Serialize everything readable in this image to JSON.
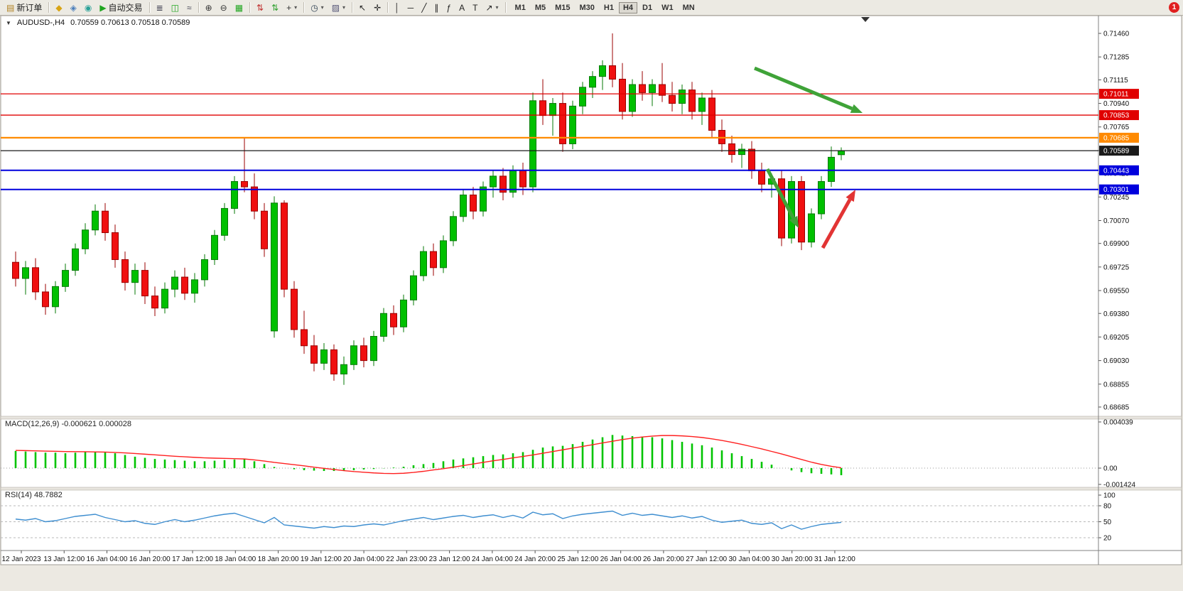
{
  "window": {
    "badge_count": "1"
  },
  "icons": {
    "chart_marker": "▼",
    "dropdown": "▾"
  },
  "toolbar": {
    "items": [
      {
        "t": "b",
        "name": "new-order-button",
        "icon": "new-order-icon",
        "glyph": "▤",
        "color": "#b08020",
        "label": "新订单"
      },
      {
        "t": "s"
      },
      {
        "t": "b",
        "name": "market-watch-button",
        "icon": "market-watch-icon",
        "glyph": "◆",
        "color": "#d8a415"
      },
      {
        "t": "b",
        "name": "navigator-button",
        "icon": "navigator-icon",
        "glyph": "◈",
        "color": "#4a7ebb"
      },
      {
        "t": "b",
        "name": "metaeditor-button",
        "icon": "metaeditor-icon",
        "glyph": "◉",
        "color": "#2aa198"
      },
      {
        "t": "b",
        "name": "autotrading-button",
        "icon": "autotrading-play-icon",
        "glyph": "▶",
        "color": "#1fa51f",
        "label": "自动交易"
      },
      {
        "t": "s"
      },
      {
        "t": "b",
        "name": "bar-chart-button",
        "icon": "bar-chart-icon",
        "glyph": "≣",
        "color": "#445"
      },
      {
        "t": "b",
        "name": "candlestick-chart-button",
        "icon": "candlestick-icon",
        "glyph": "◫",
        "color": "#1fa51f"
      },
      {
        "t": "b",
        "name": "line-chart-button",
        "icon": "line-chart-icon",
        "glyph": "≈",
        "color": "#445"
      },
      {
        "t": "s"
      },
      {
        "t": "b",
        "name": "zoom-in-button",
        "icon": "zoom-in-icon",
        "glyph": "⊕",
        "color": "#333"
      },
      {
        "t": "b",
        "name": "zoom-out-button",
        "icon": "zoom-out-icon",
        "glyph": "⊖",
        "color": "#333"
      },
      {
        "t": "b",
        "name": "tile-windows-button",
        "icon": "tile-windows-icon",
        "glyph": "▦",
        "color": "#1fa51f"
      },
      {
        "t": "s"
      },
      {
        "t": "b",
        "name": "indicators-button",
        "icon": "indicators-icon",
        "glyph": "⇅",
        "color": "#c03030"
      },
      {
        "t": "b",
        "name": "add-indicator-button",
        "icon": "add-indicator-icon",
        "glyph": "⇅",
        "color": "#30a030"
      },
      {
        "t": "b",
        "name": "indicator-list-button",
        "icon": "plus-icon",
        "glyph": "+",
        "color": "#333",
        "dd": true
      },
      {
        "t": "s"
      },
      {
        "t": "b",
        "name": "periods-button",
        "icon": "clock-icon",
        "glyph": "◷",
        "color": "#345",
        "dd": true
      },
      {
        "t": "b",
        "name": "templates-button",
        "icon": "template-icon",
        "glyph": "▨",
        "color": "#557",
        "dd": true
      },
      {
        "t": "s"
      },
      {
        "t": "b",
        "name": "cursor-button",
        "icon": "cursor-icon",
        "glyph": "↖",
        "color": "#222"
      },
      {
        "t": "b",
        "name": "crosshair-button",
        "icon": "crosshair-icon",
        "glyph": "✛",
        "color": "#222"
      },
      {
        "t": "s"
      },
      {
        "t": "b",
        "name": "vertical-line-button",
        "icon": "vertical-line-icon",
        "glyph": "│",
        "color": "#222"
      },
      {
        "t": "b",
        "name": "horizontal-line-button",
        "icon": "horizontal-line-icon",
        "glyph": "─",
        "color": "#222"
      },
      {
        "t": "b",
        "name": "trendline-button",
        "icon": "trendline-icon",
        "glyph": "╱",
        "color": "#222"
      },
      {
        "t": "b",
        "name": "channel-button",
        "icon": "channel-icon",
        "glyph": "∥",
        "color": "#222"
      },
      {
        "t": "b",
        "name": "fibonacci-button",
        "icon": "fibonacci-icon",
        "glyph": "ƒ",
        "color": "#222"
      },
      {
        "t": "b",
        "name": "text-button",
        "icon": "text-icon",
        "glyph": "A",
        "color": "#222"
      },
      {
        "t": "b",
        "name": "label-button",
        "icon": "label-icon",
        "glyph": "T",
        "color": "#222"
      },
      {
        "t": "b",
        "name": "shapes-button",
        "icon": "arrow-shape-icon",
        "glyph": "↗",
        "color": "#222",
        "dd": true
      },
      {
        "t": "s"
      }
    ],
    "timeframes": [
      {
        "label": "M1"
      },
      {
        "label": "M5"
      },
      {
        "label": "M15"
      },
      {
        "label": "M30"
      },
      {
        "label": "H1"
      },
      {
        "label": "H4",
        "active": true
      },
      {
        "label": "D1"
      },
      {
        "label": "W1"
      },
      {
        "label": "MN"
      }
    ]
  },
  "chart": {
    "title_symbol": "AUDUSD-,H4",
    "title_ohlc": "0.70559 0.70613 0.70518 0.70589",
    "macd_text": "MACD(12,26,9) -0.000621 0.000028",
    "rsi_text": "RSI(14) 48.7882"
  },
  "chart_data": [
    {
      "type": "candlestick",
      "title": "AUDUSD-,H4",
      "ohlc_display": "0.70559 0.70613 0.70518 0.70589",
      "up_color": "#00c000",
      "down_color": "#f01010",
      "price_ticks": [
        "0.71460",
        "0.71285",
        "0.71115",
        "0.70940",
        "0.70765",
        "0.70590",
        "0.70420",
        "0.70245",
        "0.70070",
        "0.69900",
        "0.69725",
        "0.69550",
        "0.69380",
        "0.69205",
        "0.69030",
        "0.68855",
        "0.68685"
      ],
      "ohlc": [
        [
          0.6976,
          0.6984,
          0.6958,
          0.6964
        ],
        [
          0.6964,
          0.6977,
          0.6952,
          0.6972
        ],
        [
          0.6972,
          0.6979,
          0.6948,
          0.6954
        ],
        [
          0.6954,
          0.696,
          0.6937,
          0.6943
        ],
        [
          0.6943,
          0.6962,
          0.6938,
          0.6958
        ],
        [
          0.6958,
          0.6975,
          0.6954,
          0.697
        ],
        [
          0.697,
          0.699,
          0.6966,
          0.6986
        ],
        [
          0.6986,
          0.7005,
          0.6982,
          0.7
        ],
        [
          0.7,
          0.7019,
          0.6996,
          0.7014
        ],
        [
          0.7014,
          0.702,
          0.6992,
          0.6998
        ],
        [
          0.6998,
          0.7004,
          0.6972,
          0.6978
        ],
        [
          0.6978,
          0.6984,
          0.6955,
          0.6961
        ],
        [
          0.6961,
          0.6975,
          0.6952,
          0.697
        ],
        [
          0.697,
          0.6976,
          0.6945,
          0.6951
        ],
        [
          0.6951,
          0.6958,
          0.6936,
          0.6942
        ],
        [
          0.6942,
          0.6961,
          0.6938,
          0.6956
        ],
        [
          0.6956,
          0.697,
          0.695,
          0.6965
        ],
        [
          0.6965,
          0.6972,
          0.6948,
          0.6953
        ],
        [
          0.6953,
          0.6968,
          0.6946,
          0.6963
        ],
        [
          0.6963,
          0.6982,
          0.6958,
          0.6978
        ],
        [
          0.6978,
          0.7,
          0.6974,
          0.6996
        ],
        [
          0.6996,
          0.702,
          0.6992,
          0.7016
        ],
        [
          0.7016,
          0.704,
          0.7012,
          0.7036
        ],
        [
          0.7036,
          0.7068,
          0.7028,
          0.7032
        ],
        [
          0.7032,
          0.7042,
          0.7008,
          0.7014
        ],
        [
          0.7014,
          0.702,
          0.698,
          0.6986
        ],
        [
          0.6925,
          0.7025,
          0.692,
          0.702
        ],
        [
          0.702,
          0.7022,
          0.695,
          0.6956
        ],
        [
          0.6956,
          0.6962,
          0.692,
          0.6926
        ],
        [
          0.6926,
          0.694,
          0.6908,
          0.6914
        ],
        [
          0.6914,
          0.6922,
          0.6895,
          0.6901
        ],
        [
          0.6901,
          0.6916,
          0.6896,
          0.6911
        ],
        [
          0.6911,
          0.6915,
          0.6888,
          0.6893
        ],
        [
          0.6893,
          0.6906,
          0.6885,
          0.69
        ],
        [
          0.69,
          0.6918,
          0.6896,
          0.6914
        ],
        [
          0.6914,
          0.692,
          0.6898,
          0.6903
        ],
        [
          0.6903,
          0.6925,
          0.6899,
          0.6921
        ],
        [
          0.6921,
          0.6942,
          0.6917,
          0.6938
        ],
        [
          0.6938,
          0.6944,
          0.6922,
          0.6928
        ],
        [
          0.6928,
          0.6952,
          0.6924,
          0.6948
        ],
        [
          0.6948,
          0.697,
          0.6944,
          0.6966
        ],
        [
          0.6966,
          0.6988,
          0.6962,
          0.6984
        ],
        [
          0.6984,
          0.699,
          0.6966,
          0.6972
        ],
        [
          0.6972,
          0.6996,
          0.6968,
          0.6992
        ],
        [
          0.6992,
          0.7014,
          0.6988,
          0.701
        ],
        [
          0.701,
          0.703,
          0.7006,
          0.7026
        ],
        [
          0.7026,
          0.7032,
          0.7008,
          0.7014
        ],
        [
          0.7014,
          0.7036,
          0.701,
          0.7032
        ],
        [
          0.7032,
          0.7044,
          0.7024,
          0.704
        ],
        [
          0.704,
          0.7046,
          0.7022,
          0.7028
        ],
        [
          0.7028,
          0.7048,
          0.7024,
          0.7044
        ],
        [
          0.7044,
          0.705,
          0.7026,
          0.7032
        ],
        [
          0.7032,
          0.7102,
          0.7028,
          0.7096
        ],
        [
          0.7096,
          0.7112,
          0.7078,
          0.7085
        ],
        [
          0.7085,
          0.7098,
          0.707,
          0.7094
        ],
        [
          0.7094,
          0.7102,
          0.7058,
          0.7064
        ],
        [
          0.7064,
          0.7096,
          0.706,
          0.7092
        ],
        [
          0.7092,
          0.711,
          0.7086,
          0.7106
        ],
        [
          0.7106,
          0.7118,
          0.7098,
          0.7114
        ],
        [
          0.7114,
          0.7126,
          0.7104,
          0.7122
        ],
        [
          0.7122,
          0.7146,
          0.7106,
          0.7112
        ],
        [
          0.7112,
          0.7124,
          0.7082,
          0.7088
        ],
        [
          0.7088,
          0.7112,
          0.7084,
          0.7108
        ],
        [
          0.7108,
          0.7118,
          0.7096,
          0.7102
        ],
        [
          0.7102,
          0.7112,
          0.7092,
          0.7108
        ],
        [
          0.7108,
          0.7124,
          0.7095,
          0.71
        ],
        [
          0.71,
          0.711,
          0.7088,
          0.7094
        ],
        [
          0.7094,
          0.7108,
          0.7086,
          0.7104
        ],
        [
          0.7104,
          0.711,
          0.7082,
          0.7088
        ],
        [
          0.7088,
          0.7102,
          0.7078,
          0.7098
        ],
        [
          0.7098,
          0.7104,
          0.7068,
          0.7074
        ],
        [
          0.7074,
          0.7082,
          0.7058,
          0.7064
        ],
        [
          0.7064,
          0.707,
          0.705,
          0.7056
        ],
        [
          0.7056,
          0.7064,
          0.7046,
          0.706
        ],
        [
          0.706,
          0.7066,
          0.7038,
          0.7044
        ],
        [
          0.7044,
          0.705,
          0.7028,
          0.7034
        ],
        [
          0.7034,
          0.7042,
          0.7024,
          0.7038
        ],
        [
          0.7038,
          0.7044,
          0.6988,
          0.6994
        ],
        [
          0.6994,
          0.704,
          0.699,
          0.7036
        ],
        [
          0.7036,
          0.704,
          0.6985,
          0.6991
        ],
        [
          0.6991,
          0.7016,
          0.6987,
          0.7012
        ],
        [
          0.7012,
          0.704,
          0.7008,
          0.7036
        ],
        [
          0.7036,
          0.7062,
          0.7032,
          0.7054
        ],
        [
          0.70559,
          0.70613,
          0.70518,
          0.70589
        ]
      ],
      "hlines": [
        {
          "label": "0.71011",
          "value": 0.71011,
          "color": "#e00000",
          "width": 1.3
        },
        {
          "label": "0.70853",
          "value": 0.70853,
          "color": "#e00000",
          "width": 1.3
        },
        {
          "label": "0.70685",
          "value": 0.70685,
          "color": "#ff8a00",
          "width": 2.2
        },
        {
          "label": "0.70589",
          "value": 0.70589,
          "color": "#1a1a1a",
          "width": 1.2
        },
        {
          "label": "0.70443",
          "value": 0.70443,
          "color": "#0000dd",
          "width": 2
        },
        {
          "label": "0.70301",
          "value": 0.70301,
          "color": "#0000dd",
          "width": 2
        }
      ],
      "time_labels": [
        "12 Jan 2023",
        "13 Jan 12:00",
        "16 Jan 04:00",
        "16 Jan 20:00",
        "17 Jan 12:00",
        "18 Jan 04:00",
        "18 Jan 20:00",
        "19 Jan 12:00",
        "20 Jan 04:00",
        "22 Jan 23:00",
        "23 Jan 12:00",
        "24 Jan 04:00",
        "24 Jan 20:00",
        "25 Jan 12:00",
        "26 Jan 04:00",
        "26 Jan 20:00",
        "27 Jan 12:00",
        "30 Jan 04:00",
        "30 Jan 20:00",
        "31 Jan 12:00"
      ],
      "arrows": [
        {
          "name": "trend-arrow-down-1",
          "color": "#3fa338",
          "from": [
            1062,
            96
          ],
          "to": [
            1214,
            159
          ]
        },
        {
          "name": "trend-arrow-down-2",
          "color": "#3fa338",
          "from": [
            1080,
            238
          ],
          "to": [
            1124,
            321
          ]
        },
        {
          "name": "bounce-arrow-up",
          "color": "#e23434",
          "from": [
            1158,
            349
          ],
          "to": [
            1204,
            267
          ]
        }
      ]
    },
    {
      "type": "bar",
      "name": "MACD",
      "label": "MACD(12,26,9)",
      "values_display": "-0.000621 0.000028",
      "scale": 0.001,
      "hist_color": "#00c400",
      "signal_color": "#ff2020",
      "hist": [
        1.5,
        1.45,
        1.4,
        1.35,
        1.35,
        1.3,
        1.35,
        1.4,
        1.45,
        1.4,
        1.3,
        1.15,
        1.0,
        0.9,
        0.8,
        0.75,
        0.7,
        0.65,
        0.6,
        0.6,
        0.65,
        0.7,
        0.75,
        0.8,
        0.6,
        0.35,
        0.1,
        0.0,
        -0.1,
        -0.18,
        -0.22,
        -0.25,
        -0.25,
        -0.22,
        -0.18,
        -0.12,
        -0.08,
        -0.02,
        0.05,
        0.12,
        0.25,
        0.35,
        0.45,
        0.6,
        0.75,
        0.85,
        0.95,
        1.05,
        1.15,
        1.2,
        1.3,
        1.4,
        1.6,
        1.8,
        1.9,
        1.95,
        2.1,
        2.3,
        2.5,
        2.7,
        2.9,
        2.85,
        2.8,
        2.75,
        2.7,
        2.6,
        2.45,
        2.3,
        2.15,
        2.0,
        1.8,
        1.55,
        1.3,
        1.05,
        0.8,
        0.55,
        0.3,
        0.0,
        -0.2,
        -0.35,
        -0.45,
        -0.5,
        -0.55,
        -0.62
      ],
      "signal": [
        1.55,
        1.53,
        1.51,
        1.49,
        1.47,
        1.45,
        1.44,
        1.43,
        1.42,
        1.4,
        1.37,
        1.33,
        1.28,
        1.22,
        1.16,
        1.1,
        1.04,
        0.99,
        0.94,
        0.9,
        0.87,
        0.85,
        0.83,
        0.8,
        0.72,
        0.62,
        0.5,
        0.4,
        0.3,
        0.2,
        0.08,
        -0.02,
        -0.12,
        -0.22,
        -0.3,
        -0.36,
        -0.42,
        -0.46,
        -0.48,
        -0.45,
        -0.38,
        -0.28,
        -0.16,
        -0.05,
        0.08,
        0.22,
        0.36,
        0.5,
        0.64,
        0.76,
        0.9,
        1.02,
        1.15,
        1.3,
        1.45,
        1.6,
        1.75,
        1.9,
        2.05,
        2.2,
        2.35,
        2.5,
        2.62,
        2.72,
        2.8,
        2.85,
        2.85,
        2.82,
        2.76,
        2.68,
        2.56,
        2.42,
        2.26,
        2.08,
        1.88,
        1.68,
        1.46,
        1.24,
        1.0,
        0.76,
        0.52,
        0.32,
        0.16,
        0.03
      ],
      "axis_labels": [
        {
          "text": "0.004039",
          "value": 0.004039
        },
        {
          "text": "0.00",
          "value": 0
        },
        {
          "text": "-0.001424",
          "value": -0.001424
        }
      ]
    },
    {
      "type": "line",
      "name": "RSI",
      "label": "RSI(14)",
      "value_display": "48.7882",
      "color": "#3e8ed0",
      "range": [
        0,
        100
      ],
      "levels": [
        80,
        50,
        20
      ],
      "values": [
        55,
        53,
        56,
        50,
        52,
        56,
        60,
        62,
        64,
        58,
        54,
        50,
        52,
        47,
        45,
        50,
        54,
        50,
        53,
        57,
        61,
        64,
        66,
        60,
        54,
        48,
        58,
        44,
        42,
        40,
        38,
        41,
        39,
        42,
        41,
        44,
        46,
        44,
        48,
        52,
        55,
        58,
        54,
        57,
        60,
        62,
        58,
        61,
        63,
        58,
        62,
        57,
        68,
        63,
        65,
        56,
        61,
        64,
        66,
        68,
        70,
        62,
        66,
        62,
        64,
        61,
        58,
        61,
        57,
        60,
        53,
        49,
        51,
        53,
        47,
        45,
        48,
        37,
        44,
        36,
        41,
        45,
        47,
        48.7882
      ],
      "axis_labels": [
        {
          "text": "100",
          "value": 100
        },
        {
          "text": "80",
          "value": 80
        },
        {
          "text": "50",
          "value": 50
        },
        {
          "text": "20",
          "value": 20
        }
      ]
    }
  ]
}
